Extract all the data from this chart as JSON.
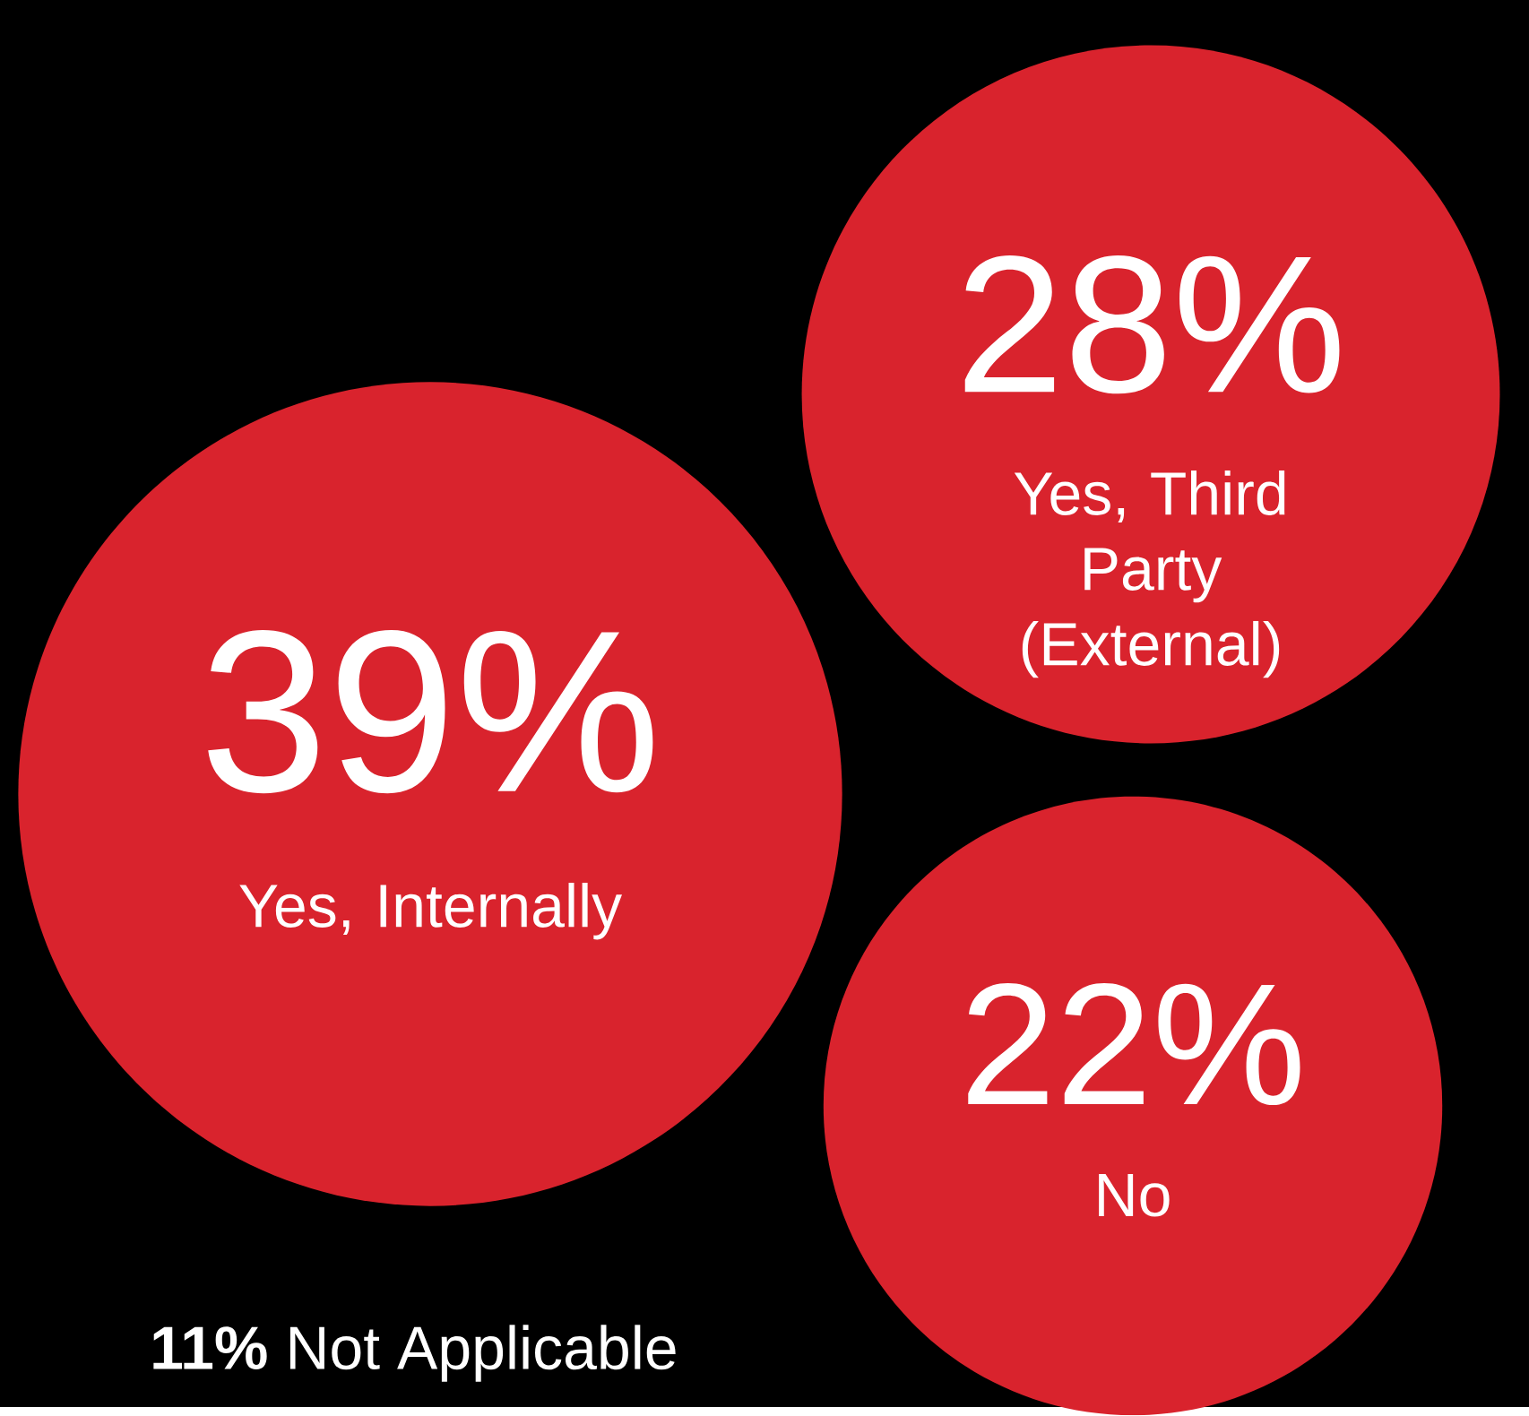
{
  "chart_data": {
    "type": "other",
    "categories": [
      "Yes, Internally",
      "Yes, Third Party (External)",
      "No",
      "Not Applicable"
    ],
    "values": [
      39,
      28,
      22,
      11
    ],
    "value_labels": [
      "39%",
      "28%",
      "22%",
      "11%"
    ],
    "colors": [
      "#d9232d",
      "#d9232d",
      "#d9232d",
      null
    ]
  }
}
